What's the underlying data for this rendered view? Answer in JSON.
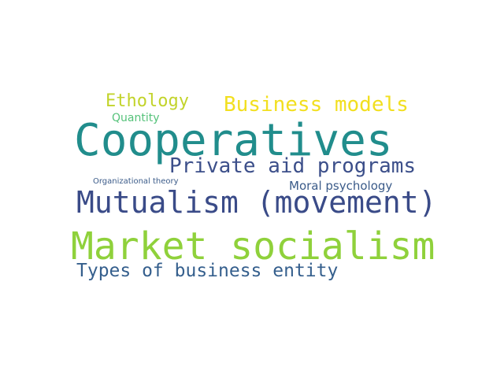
{
  "words": [
    {
      "text": "Ethology",
      "color": "#c2d32a"
    },
    {
      "text": "Business models",
      "color": "#f2df1f"
    },
    {
      "text": "Quantity",
      "color": "#55c27a"
    },
    {
      "text": "Cooperatives",
      "color": "#218d8c"
    },
    {
      "text": "Private aid programs",
      "color": "#3c4f8a"
    },
    {
      "text": "Organizational theory",
      "color": "#3b5b89"
    },
    {
      "text": "Moral psychology",
      "color": "#3b5b89"
    },
    {
      "text": "Mutualism (movement)",
      "color": "#3a4b88"
    },
    {
      "text": "Market socialism",
      "color": "#8fd13b"
    },
    {
      "text": "Types of business entity",
      "color": "#355f8d"
    }
  ]
}
